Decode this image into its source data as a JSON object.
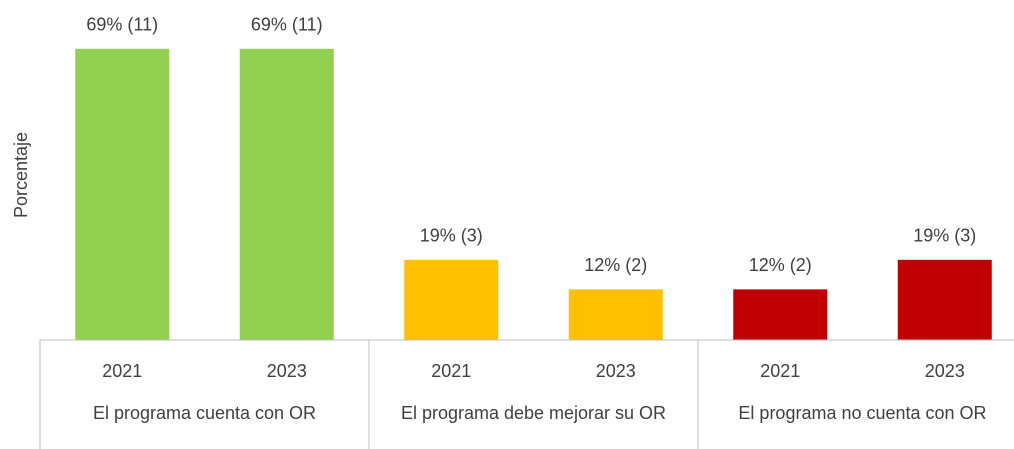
{
  "chart_data": {
    "type": "bar",
    "y_label": "Porcentaje",
    "groups": [
      {
        "name": "El programa cuenta con OR",
        "color": "#92d050",
        "categories": [
          "2021",
          "2023"
        ],
        "values": [
          69,
          69
        ],
        "value_labels": [
          "69% (11)",
          "69% (11)"
        ]
      },
      {
        "name": "El programa debe mejorar su OR",
        "color": "#ffc000",
        "categories": [
          "2021",
          "2023"
        ],
        "values": [
          19,
          12
        ],
        "value_labels": [
          "19% (3)",
          "12% (2)"
        ]
      },
      {
        "name": "El programa no cuenta con OR",
        "color": "#c00000",
        "categories": [
          "2021",
          "2023"
        ],
        "values": [
          12,
          19
        ],
        "value_labels": [
          "12% (2)",
          "19% (3)"
        ]
      }
    ]
  }
}
